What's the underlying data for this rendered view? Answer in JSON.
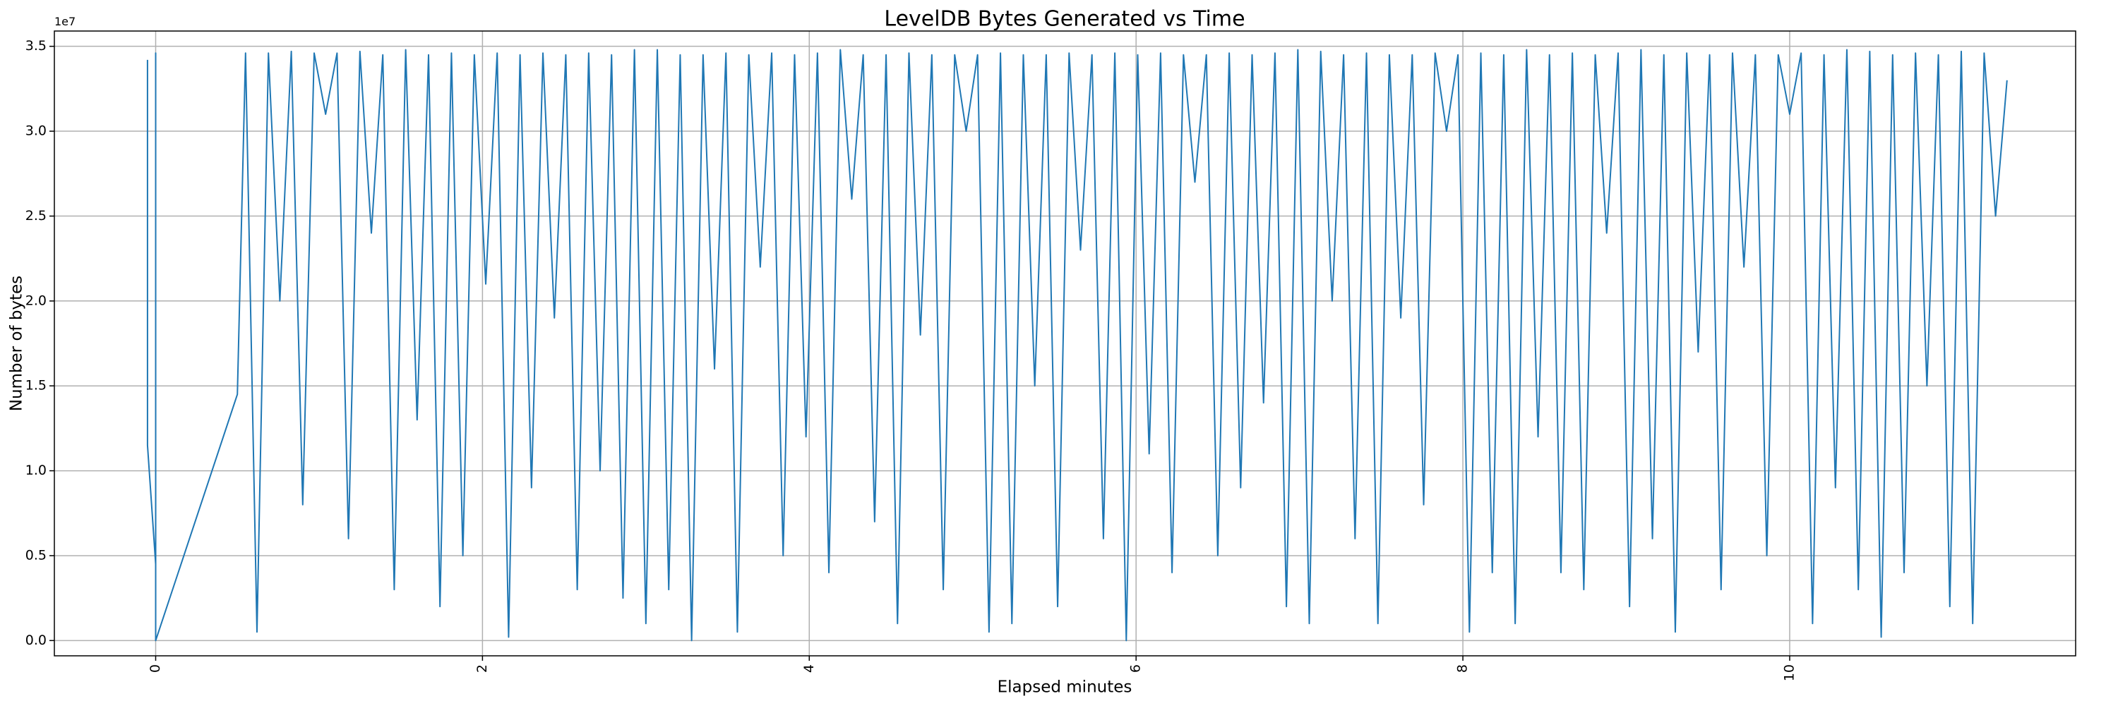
{
  "chart_data": {
    "type": "line",
    "title": "LevelDB Bytes Generated vs Time",
    "x_label": "Elapsed minutes",
    "y_label": "Number of bytes",
    "y_offset_label": "1e7",
    "color": "#1f77b4",
    "grid": true,
    "xlim": [
      -0.62,
      11.75
    ],
    "ylim": [
      -0.09,
      3.59
    ],
    "xticks": [
      0,
      2,
      4,
      6,
      8,
      10
    ],
    "yticks": [
      {
        "value": 0,
        "label": "0.0"
      },
      0.5,
      {
        "value": 1,
        "label": "1.0"
      },
      1.5,
      {
        "value": 2,
        "label": "2.0"
      },
      2.5,
      {
        "value": 3,
        "label": "3.0"
      },
      3.5
    ],
    "x": [
      -0.05,
      -0.05,
      0,
      0,
      0,
      0.5,
      0.55,
      0.62,
      0.69,
      0.76,
      0.83,
      0.9,
      0.97,
      1.04,
      1.11,
      1.18,
      1.25,
      1.32,
      1.39,
      1.46,
      1.53,
      1.6,
      1.67,
      1.74,
      1.81,
      1.88,
      1.95,
      2.02,
      2.09,
      2.16,
      2.23,
      2.3,
      2.37,
      2.44,
      2.51,
      2.58,
      2.65,
      2.72,
      2.79,
      2.86,
      2.93,
      3.0,
      3.07,
      3.14,
      3.21,
      3.28,
      3.35,
      3.42,
      3.49,
      3.56,
      3.63,
      3.7,
      3.77,
      3.84,
      3.91,
      3.98,
      4.05,
      4.12,
      4.19,
      4.26,
      4.33,
      4.4,
      4.47,
      4.54,
      4.61,
      4.68,
      4.75,
      4.82,
      4.89,
      4.96,
      5.03,
      5.1,
      5.17,
      5.24,
      5.31,
      5.38,
      5.45,
      5.52,
      5.59,
      5.66,
      5.73,
      5.8,
      5.87,
      5.94,
      6.01,
      6.08,
      6.15,
      6.22,
      6.29,
      6.36,
      6.43,
      6.5,
      6.57,
      6.64,
      6.71,
      6.78,
      6.85,
      6.92,
      6.99,
      7.06,
      7.13,
      7.2,
      7.27,
      7.34,
      7.41,
      7.48,
      7.55,
      7.62,
      7.69,
      7.76,
      7.83,
      7.9,
      7.97,
      8.04,
      8.11,
      8.18,
      8.25,
      8.32,
      8.39,
      8.46,
      8.53,
      8.6,
      8.67,
      8.74,
      8.81,
      8.88,
      8.95,
      9.02,
      9.09,
      9.16,
      9.23,
      9.3,
      9.37,
      9.44,
      9.51,
      9.58,
      9.65,
      9.72,
      9.79,
      9.86,
      9.93,
      10.0,
      10.07,
      10.14,
      10.21,
      10.28,
      10.35,
      10.42,
      10.49,
      10.56,
      10.63,
      10.7,
      10.77,
      10.84,
      10.91,
      10.98,
      11.05,
      11.12,
      11.19,
      11.26,
      11.33
    ],
    "values": [
      3.42,
      1.15,
      0.45,
      3.46,
      0,
      1.45,
      3.46,
      0.05,
      3.46,
      2.0,
      3.47,
      0.8,
      3.46,
      3.1,
      3.46,
      0.6,
      3.47,
      2.4,
      3.45,
      0.3,
      3.48,
      1.3,
      3.45,
      0.2,
      3.46,
      0.5,
      3.45,
      2.1,
      3.46,
      0.02,
      3.45,
      0.9,
      3.46,
      1.9,
      3.45,
      0.3,
      3.46,
      1.0,
      3.45,
      0.25,
      3.48,
      0.1,
      3.48,
      0.3,
      3.45,
      0.0,
      3.45,
      1.6,
      3.46,
      0.05,
      3.45,
      2.2,
      3.46,
      0.5,
      3.45,
      1.2,
      3.46,
      0.4,
      3.48,
      2.6,
      3.45,
      0.7,
      3.45,
      0.1,
      3.46,
      1.8,
      3.45,
      0.3,
      3.45,
      3.0,
      3.45,
      0.05,
      3.46,
      0.1,
      3.45,
      1.5,
      3.45,
      0.2,
      3.46,
      2.3,
      3.45,
      0.6,
      3.46,
      0.0,
      3.45,
      1.1,
      3.46,
      0.4,
      3.45,
      2.7,
      3.45,
      0.5,
      3.46,
      0.9,
      3.45,
      1.4,
      3.46,
      0.2,
      3.48,
      0.1,
      3.47,
      2.0,
      3.45,
      0.6,
      3.46,
      0.1,
      3.45,
      1.9,
      3.45,
      0.8,
      3.46,
      3.0,
      3.45,
      0.05,
      3.46,
      0.4,
      3.45,
      0.1,
      3.48,
      1.2,
      3.45,
      0.4,
      3.46,
      0.3,
      3.45,
      2.4,
      3.46,
      0.2,
      3.48,
      0.6,
      3.45,
      0.05,
      3.46,
      1.7,
      3.45,
      0.3,
      3.46,
      2.2,
      3.45,
      0.5,
      3.45,
      3.1,
      3.46,
      0.1,
      3.45,
      0.9,
      3.48,
      0.3,
      3.47,
      0.02,
      3.45,
      0.4,
      3.46,
      1.5,
      3.45,
      0.2,
      3.47,
      0.1,
      3.46,
      2.5,
      3.3
    ]
  }
}
